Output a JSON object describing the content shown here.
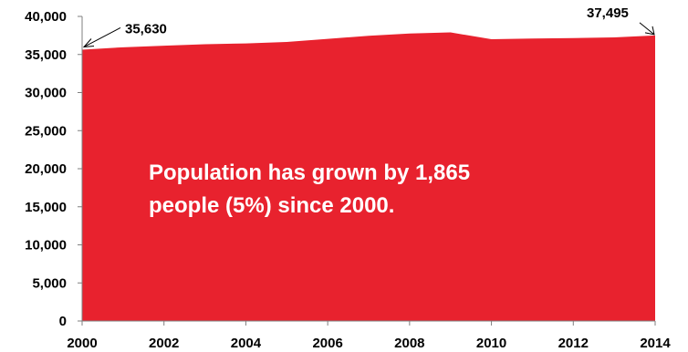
{
  "chart_data": {
    "type": "area",
    "title": "",
    "xlabel": "",
    "ylabel": "",
    "x": [
      2000,
      2001,
      2002,
      2003,
      2004,
      2005,
      2006,
      2007,
      2008,
      2009,
      2010,
      2011,
      2012,
      2013,
      2014
    ],
    "values": [
      35630,
      35950,
      36150,
      36350,
      36450,
      36650,
      37050,
      37450,
      37750,
      37900,
      37000,
      37100,
      37150,
      37250,
      37495
    ],
    "xlim": [
      2000,
      2014
    ],
    "ylim": [
      0,
      40000
    ],
    "x_ticks": [
      "2000",
      "2002",
      "2004",
      "2006",
      "2008",
      "2010",
      "2012",
      "2014"
    ],
    "y_ticks": [
      "0",
      "5,000",
      "10,000",
      "15,000",
      "20,000",
      "25,000",
      "30,000",
      "35,000",
      "40,000"
    ],
    "grid": false,
    "legend": "none",
    "fill_color": "#e8222e",
    "annotations": [
      {
        "text": "35,630",
        "x": 2000,
        "y": 35630
      },
      {
        "text": "37,495",
        "x": 2014,
        "y": 37495
      }
    ],
    "callout_lines": [
      "Population has grown by 1,865",
      "people (5%) since 2000."
    ]
  }
}
